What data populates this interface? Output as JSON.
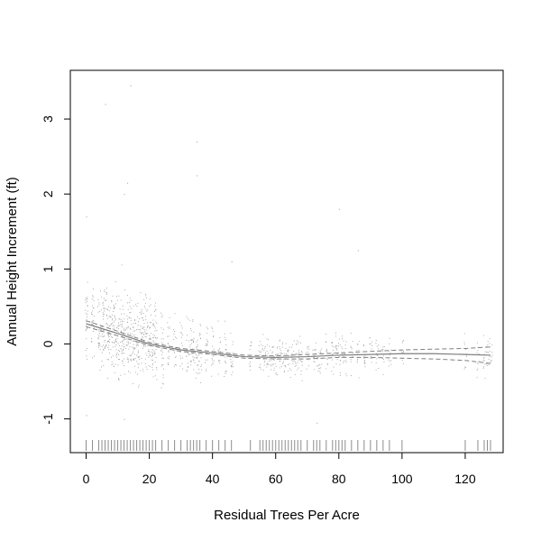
{
  "chart_data": {
    "type": "scatter",
    "title": "",
    "xlabel": "Residual Trees Per Acre",
    "ylabel": "Annual Height Increment (ft)",
    "xlim": [
      -5,
      132
    ],
    "ylim": [
      -1.45,
      3.65
    ],
    "xticks": [
      0,
      20,
      40,
      60,
      80,
      100,
      120
    ],
    "yticks": [
      -1,
      0,
      1,
      2,
      3
    ],
    "grid": false,
    "legend": "none",
    "colors": {
      "points": "#9a9a9a",
      "fit": "#7f7f7f",
      "band": "#7f7f7f",
      "rug": "#8c8c8c",
      "frame": "#000000"
    },
    "x_groups": [
      0,
      2,
      4,
      5,
      6,
      7,
      8,
      9,
      10,
      11,
      12,
      13,
      14,
      15,
      16,
      17,
      18,
      19,
      20,
      21,
      22,
      24,
      26,
      28,
      30,
      32,
      33,
      34,
      35,
      36,
      38,
      40,
      42,
      44,
      46,
      52,
      55,
      56,
      57,
      58,
      59,
      60,
      61,
      62,
      63,
      64,
      65,
      66,
      67,
      68,
      70,
      72,
      73,
      74,
      76,
      78,
      79,
      80,
      81,
      82,
      84,
      86,
      88,
      90,
      92,
      94,
      96,
      100,
      120,
      124,
      126,
      127,
      128
    ],
    "rug_x": [
      0,
      2,
      4,
      5,
      6,
      7,
      8,
      9,
      10,
      11,
      12,
      13,
      14,
      15,
      16,
      17,
      18,
      19,
      20,
      21,
      22,
      24,
      26,
      28,
      30,
      32,
      33,
      34,
      35,
      36,
      38,
      40,
      42,
      44,
      46,
      52,
      55,
      56,
      57,
      58,
      59,
      60,
      61,
      62,
      63,
      64,
      65,
      66,
      67,
      68,
      70,
      72,
      73,
      74,
      76,
      78,
      79,
      80,
      81,
      82,
      84,
      86,
      88,
      90,
      92,
      94,
      96,
      100,
      120,
      124,
      126,
      127,
      128
    ],
    "fit": {
      "x": [
        0,
        10,
        20,
        30,
        40,
        50,
        60,
        70,
        80,
        90,
        100,
        110,
        120,
        128
      ],
      "y": [
        0.27,
        0.14,
        0.0,
        -0.08,
        -0.12,
        -0.17,
        -0.18,
        -0.17,
        -0.15,
        -0.14,
        -0.13,
        -0.13,
        -0.14,
        -0.15
      ],
      "upper": [
        0.31,
        0.17,
        0.02,
        -0.06,
        -0.1,
        -0.15,
        -0.16,
        -0.14,
        -0.12,
        -0.1,
        -0.08,
        -0.07,
        -0.06,
        -0.04
      ],
      "lower": [
        0.23,
        0.11,
        -0.02,
        -0.1,
        -0.14,
        -0.19,
        -0.2,
        -0.2,
        -0.18,
        -0.18,
        -0.19,
        -0.2,
        -0.22,
        -0.26
      ]
    },
    "outliers": [
      {
        "x": 6,
        "y": 3.2
      },
      {
        "x": 14,
        "y": 3.45
      },
      {
        "x": 35,
        "y": 2.7
      },
      {
        "x": 35,
        "y": 2.25
      },
      {
        "x": 13,
        "y": 2.15
      },
      {
        "x": 12,
        "y": 2.0
      },
      {
        "x": 80,
        "y": 1.8
      },
      {
        "x": 86,
        "y": 1.25
      },
      {
        "x": 46,
        "y": 1.1
      },
      {
        "x": 0,
        "y": 1.7
      },
      {
        "x": 0,
        "y": -0.95
      },
      {
        "x": 12,
        "y": -1.0
      },
      {
        "x": 73,
        "y": -1.05
      }
    ]
  }
}
